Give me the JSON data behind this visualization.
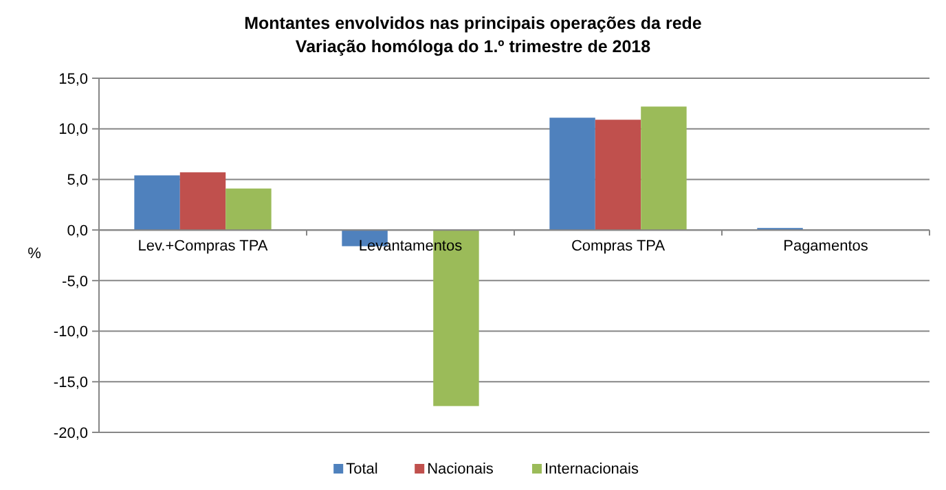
{
  "chart_data": {
    "type": "bar",
    "title": "Montantes envolvidos nas principais operações  da rede",
    "subtitle": "Variação homóloga do 1.º trimestre de 2018",
    "ylabel": "%",
    "categories": [
      "Lev.+Compras TPA",
      "Levantamentos",
      "Compras TPA",
      "Pagamentos"
    ],
    "series": [
      {
        "name": "Total",
        "color": "#4f81bd",
        "values": [
          5.4,
          -1.6,
          11.1,
          0.2
        ]
      },
      {
        "name": "Nacionais",
        "color": "#c0504d",
        "values": [
          5.7,
          null,
          10.9,
          null
        ]
      },
      {
        "name": "Internacionais",
        "color": "#9bbb59",
        "values": [
          4.1,
          -17.4,
          12.2,
          null
        ]
      }
    ],
    "ylim": [
      -20,
      15
    ],
    "yticks": [
      {
        "value": -20,
        "label": "-20,0"
      },
      {
        "value": -15,
        "label": "-15,0"
      },
      {
        "value": -10,
        "label": "-10,0"
      },
      {
        "value": -5,
        "label": "-5,0"
      },
      {
        "value": 0,
        "label": "0,0"
      },
      {
        "value": 5,
        "label": "5,0"
      },
      {
        "value": 10,
        "label": "10,0"
      },
      {
        "value": 15,
        "label": "15,0"
      }
    ],
    "grid": "y",
    "legend": "bottom"
  }
}
